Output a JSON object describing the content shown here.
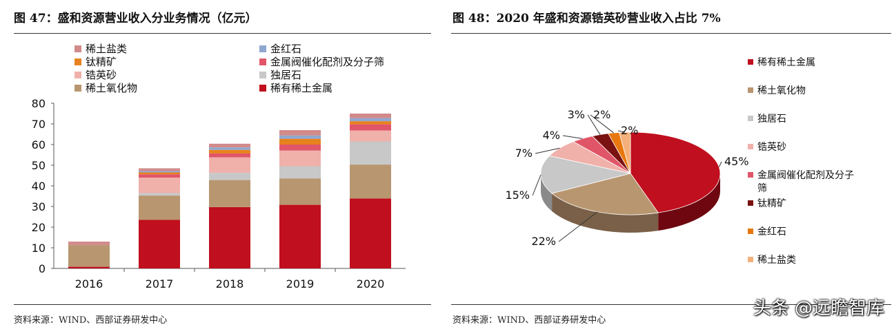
{
  "left": {
    "title": "图 47：盛和资源营业收入分业务情况（亿元）",
    "source": "资料来源：WIND、西部证券研发中心"
  },
  "right": {
    "title": "图 48：2020 年盛和资源锆英砂营业收入占比 7%",
    "source": "资料来源：WIND、西部证券研发中心"
  },
  "watermark": "头条 @远瞻智库",
  "chart_data": [
    {
      "type": "bar",
      "stacked": true,
      "title": "盛和资源营业收入分业务情况（亿元）",
      "categories": [
        "2016",
        "2017",
        "2018",
        "2019",
        "2020"
      ],
      "ylim": [
        0,
        80
      ],
      "yticks": [
        0,
        10,
        20,
        30,
        40,
        50,
        60,
        70,
        80
      ],
      "legend_order": [
        "稀土盐类",
        "金红石",
        "钛精矿",
        "金属阀催化配剂及分子筛",
        "锆英砂",
        "独居石",
        "稀土氧化物",
        "稀有稀土金属"
      ],
      "series": [
        {
          "name": "稀有稀土金属",
          "color": "#c00f1e",
          "values": [
            0.8,
            23.5,
            29.7,
            30.8,
            33.9
          ]
        },
        {
          "name": "稀土氧化物",
          "color": "#b89670",
          "values": [
            10.5,
            11.8,
            13.1,
            12.8,
            16.4
          ]
        },
        {
          "name": "独居石",
          "color": "#c8c8c8",
          "values": [
            0,
            1.2,
            3.5,
            5.9,
            11.2
          ]
        },
        {
          "name": "锆英砂",
          "color": "#f0b1ab",
          "values": [
            0,
            7.5,
            7.5,
            7.6,
            5.3
          ]
        },
        {
          "name": "金属阀催化配剂及分子筛",
          "color": "#e05668",
          "values": [
            0,
            1.6,
            1.9,
            2.9,
            3.0
          ]
        },
        {
          "name": "钛精矿",
          "color": "#e8821e",
          "values": [
            0,
            0.9,
            1.7,
            2.8,
            1.5
          ]
        },
        {
          "name": "金红石",
          "color": "#8fa8d0",
          "values": [
            0,
            0.7,
            1.2,
            1.6,
            1.5
          ]
        },
        {
          "name": "稀土盐类",
          "color": "#d18b8b",
          "values": [
            1.7,
            1.3,
            1.8,
            2.6,
            2.2
          ]
        }
      ]
    },
    {
      "type": "pie",
      "title": "2020 年盛和资源锆英砂营业收入占比 7%",
      "slices": [
        {
          "name": "稀有稀土金属",
          "value": 45,
          "label": "45%",
          "color": "#c00f1e",
          "side": "#6e0710"
        },
        {
          "name": "稀土氧化物",
          "value": 22,
          "label": "22%",
          "color": "#b89670",
          "side": "#7a6048"
        },
        {
          "name": "独居石",
          "value": 15,
          "label": "15%",
          "color": "#c8c8c8",
          "side": "#8a8a8a"
        },
        {
          "name": "锆英砂",
          "value": 7,
          "label": "7%",
          "color": "#f0b1ab",
          "side": "#a0706c"
        },
        {
          "name": "金属阀催化配剂及分子筛",
          "value": 4,
          "label": "4%",
          "color": "#e05668",
          "side": "#903040"
        },
        {
          "name": "钛精矿",
          "value": 3,
          "label": "3%",
          "color": "#7a1212",
          "side": "#4a0808"
        },
        {
          "name": "金红石",
          "value": 2,
          "label": "2%",
          "color": "#e8780e",
          "side": "#9a4c06"
        },
        {
          "name": "稀土盐类",
          "value": 2,
          "label": "2%",
          "color": "#f4b07a",
          "side": "#a87448"
        }
      ],
      "legend_order": [
        "稀有稀土金属",
        "稀土氧化物",
        "独居石",
        "锆英砂",
        "金属阀催化配剂及分子筛",
        "钛精矿",
        "金红石",
        "稀土盐类"
      ]
    }
  ]
}
